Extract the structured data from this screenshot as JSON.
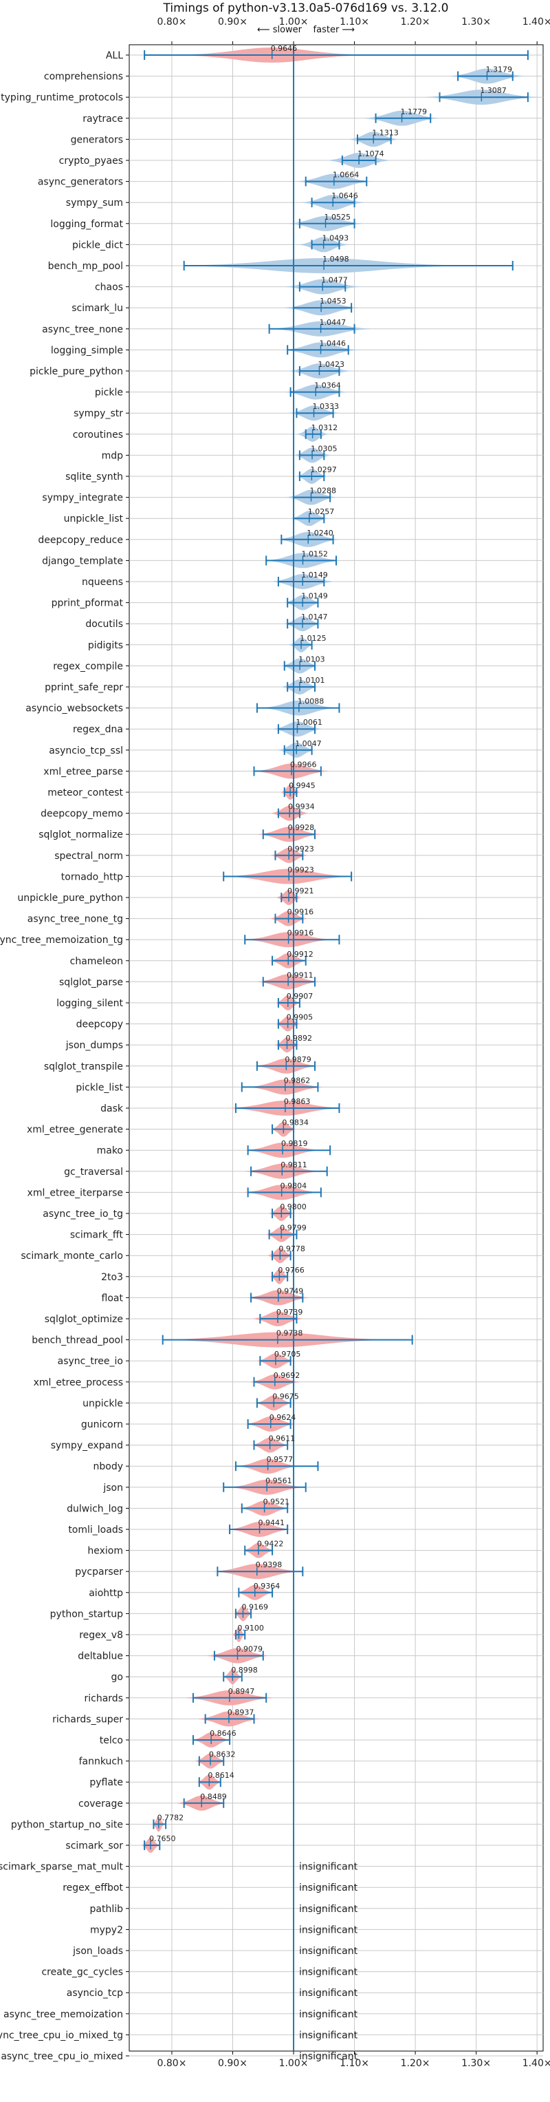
{
  "chart_data": {
    "type": "violin",
    "title": "Timings of python-v3.13.0a5-076d169 vs. 3.12.0",
    "subtitle": "⟵ slower    faster ⟶",
    "xlim": [
      0.73,
      1.41
    ],
    "xticks": [
      0.8,
      0.9,
      1.0,
      1.1,
      1.2,
      1.3,
      1.4
    ],
    "xtick_labels": [
      "0.80×",
      "0.90×",
      "1.00×",
      "1.10×",
      "1.20×",
      "1.30×",
      "1.40×"
    ],
    "reference_line": 1.0,
    "grid": true,
    "colors": {
      "faster": "#aecbe6",
      "slower": "#f3a5a5",
      "error_bar": "#1f77b4",
      "reference": "#1f77b4",
      "grid": "#c8c8c8"
    },
    "insignificant_label": "insignificant",
    "benchmarks": [
      {
        "name": "ALL",
        "value": 0.9646,
        "label": "0.9646",
        "low": 0.755,
        "high": 1.385,
        "spread": 0.3,
        "significant": true
      },
      {
        "name": "comprehensions",
        "value": 1.3179,
        "label": "1.3179",
        "low": 1.27,
        "high": 1.36,
        "spread": 0.12,
        "significant": true
      },
      {
        "name": "typing_runtime_protocols",
        "value": 1.3087,
        "label": "1.3087",
        "low": 1.24,
        "high": 1.385,
        "spread": 0.18,
        "significant": true
      },
      {
        "name": "raytrace",
        "value": 1.1779,
        "label": "1.1779",
        "low": 1.135,
        "high": 1.225,
        "spread": 0.12,
        "significant": true
      },
      {
        "name": "generators",
        "value": 1.1313,
        "label": "1.1313",
        "low": 1.105,
        "high": 1.16,
        "spread": 0.08,
        "significant": true
      },
      {
        "name": "crypto_pyaes",
        "value": 1.1074,
        "label": "1.1074",
        "low": 1.08,
        "high": 1.135,
        "spread": 0.1,
        "significant": true
      },
      {
        "name": "async_generators",
        "value": 1.0664,
        "label": "1.0664",
        "low": 1.02,
        "high": 1.12,
        "spread": 0.12,
        "significant": true
      },
      {
        "name": "sympy_sum",
        "value": 1.0646,
        "label": "1.0646",
        "low": 1.03,
        "high": 1.1,
        "spread": 0.1,
        "significant": true
      },
      {
        "name": "logging_format",
        "value": 1.0525,
        "label": "1.0525",
        "low": 1.01,
        "high": 1.1,
        "spread": 0.12,
        "significant": true
      },
      {
        "name": "pickle_dict",
        "value": 1.0493,
        "label": "1.0493",
        "low": 1.03,
        "high": 1.075,
        "spread": 0.08,
        "significant": true
      },
      {
        "name": "bench_mp_pool",
        "value": 1.0498,
        "label": "1.0498",
        "low": 0.82,
        "high": 1.36,
        "spread": 0.45,
        "significant": true
      },
      {
        "name": "chaos",
        "value": 1.0477,
        "label": "1.0477",
        "low": 1.01,
        "high": 1.085,
        "spread": 0.12,
        "significant": true
      },
      {
        "name": "scimark_lu",
        "value": 1.0453,
        "label": "1.0453",
        "low": 1.0,
        "high": 1.095,
        "spread": 0.12,
        "significant": true
      },
      {
        "name": "async_tree_none",
        "value": 1.0447,
        "label": "1.0447",
        "low": 0.96,
        "high": 1.1,
        "spread": 0.16,
        "significant": true
      },
      {
        "name": "logging_simple",
        "value": 1.0446,
        "label": "1.0446",
        "low": 0.99,
        "high": 1.09,
        "spread": 0.12,
        "significant": true
      },
      {
        "name": "pickle_pure_python",
        "value": 1.0423,
        "label": "1.0423",
        "low": 1.01,
        "high": 1.075,
        "spread": 0.1,
        "significant": true
      },
      {
        "name": "pickle",
        "value": 1.0364,
        "label": "1.0364",
        "low": 0.995,
        "high": 1.075,
        "spread": 0.1,
        "significant": true
      },
      {
        "name": "sympy_str",
        "value": 1.0333,
        "label": "1.0333",
        "low": 1.005,
        "high": 1.065,
        "spread": 0.08,
        "significant": true
      },
      {
        "name": "coroutines",
        "value": 1.0312,
        "label": "1.0312",
        "low": 1.02,
        "high": 1.045,
        "spread": 0.05,
        "significant": true
      },
      {
        "name": "mdp",
        "value": 1.0305,
        "label": "1.0305",
        "low": 1.01,
        "high": 1.05,
        "spread": 0.06,
        "significant": true
      },
      {
        "name": "sqlite_synth",
        "value": 1.0297,
        "label": "1.0297",
        "low": 1.01,
        "high": 1.05,
        "spread": 0.05,
        "significant": true
      },
      {
        "name": "sympy_integrate",
        "value": 1.0288,
        "label": "1.0288",
        "low": 1.0,
        "high": 1.06,
        "spread": 0.08,
        "significant": true
      },
      {
        "name": "unpickle_list",
        "value": 1.0257,
        "label": "1.0257",
        "low": 1.0,
        "high": 1.05,
        "spread": 0.06,
        "significant": true
      },
      {
        "name": "deepcopy_reduce",
        "value": 1.024,
        "label": "1.0240",
        "low": 0.98,
        "high": 1.065,
        "spread": 0.1,
        "significant": true
      },
      {
        "name": "django_template",
        "value": 1.0152,
        "label": "1.0152",
        "low": 0.955,
        "high": 1.07,
        "spread": 0.12,
        "significant": true
      },
      {
        "name": "nqueens",
        "value": 1.0149,
        "label": "1.0149",
        "low": 0.975,
        "high": 1.05,
        "spread": 0.1,
        "significant": true
      },
      {
        "name": "pprint_pformat",
        "value": 1.0149,
        "label": "1.0149",
        "low": 0.99,
        "high": 1.04,
        "spread": 0.06,
        "significant": true
      },
      {
        "name": "docutils",
        "value": 1.0147,
        "label": "1.0147",
        "low": 0.99,
        "high": 1.04,
        "spread": 0.06,
        "significant": true
      },
      {
        "name": "pidigits",
        "value": 1.0125,
        "label": "1.0125",
        "low": 1.0,
        "high": 1.03,
        "spread": 0.04,
        "significant": true
      },
      {
        "name": "regex_compile",
        "value": 1.0103,
        "label": "1.0103",
        "low": 0.985,
        "high": 1.035,
        "spread": 0.06,
        "significant": true
      },
      {
        "name": "pprint_safe_repr",
        "value": 1.0101,
        "label": "1.0101",
        "low": 0.99,
        "high": 1.035,
        "spread": 0.06,
        "significant": true
      },
      {
        "name": "asyncio_websockets",
        "value": 1.0088,
        "label": "1.0088",
        "low": 0.94,
        "high": 1.075,
        "spread": 0.12,
        "significant": true
      },
      {
        "name": "regex_dna",
        "value": 1.0061,
        "label": "1.0061",
        "low": 0.975,
        "high": 1.035,
        "spread": 0.08,
        "significant": true
      },
      {
        "name": "asyncio_tcp_ssl",
        "value": 1.0047,
        "label": "1.0047",
        "low": 0.985,
        "high": 1.03,
        "spread": 0.06,
        "significant": true
      },
      {
        "name": "xml_etree_parse",
        "value": 0.9966,
        "label": "0.9966",
        "low": 0.935,
        "high": 1.045,
        "spread": 0.12,
        "significant": true
      },
      {
        "name": "meteor_contest",
        "value": 0.9945,
        "label": "0.9945",
        "low": 0.985,
        "high": 1.005,
        "spread": 0.03,
        "significant": true
      },
      {
        "name": "deepcopy_memo",
        "value": 0.9934,
        "label": "0.9934",
        "low": 0.975,
        "high": 1.01,
        "spread": 0.06,
        "significant": true
      },
      {
        "name": "sqlglot_normalize",
        "value": 0.9928,
        "label": "0.9928",
        "low": 0.95,
        "high": 1.035,
        "spread": 0.1,
        "significant": true
      },
      {
        "name": "spectral_norm",
        "value": 0.9923,
        "label": "0.9923",
        "low": 0.97,
        "high": 1.015,
        "spread": 0.06,
        "significant": true
      },
      {
        "name": "tornado_http",
        "value": 0.9923,
        "label": "0.9923",
        "low": 0.885,
        "high": 1.095,
        "spread": 0.2,
        "significant": true
      },
      {
        "name": "unpickle_pure_python",
        "value": 0.9921,
        "label": "0.9921",
        "low": 0.98,
        "high": 1.005,
        "spread": 0.04,
        "significant": true
      },
      {
        "name": "async_tree_none_tg",
        "value": 0.9916,
        "label": "0.9916",
        "low": 0.97,
        "high": 1.015,
        "spread": 0.06,
        "significant": true
      },
      {
        "name": "async_tree_memoization_tg",
        "value": 0.9916,
        "label": "0.9916",
        "low": 0.92,
        "high": 1.075,
        "spread": 0.14,
        "significant": true
      },
      {
        "name": "chameleon",
        "value": 0.9912,
        "label": "0.9912",
        "low": 0.965,
        "high": 1.02,
        "spread": 0.06,
        "significant": true
      },
      {
        "name": "sqlglot_parse",
        "value": 0.9911,
        "label": "0.9911",
        "low": 0.95,
        "high": 1.035,
        "spread": 0.1,
        "significant": true
      },
      {
        "name": "logging_silent",
        "value": 0.9907,
        "label": "0.9907",
        "low": 0.975,
        "high": 1.01,
        "spread": 0.04,
        "significant": true
      },
      {
        "name": "deepcopy",
        "value": 0.9905,
        "label": "0.9905",
        "low": 0.975,
        "high": 1.005,
        "spread": 0.04,
        "significant": true
      },
      {
        "name": "json_dumps",
        "value": 0.9892,
        "label": "0.9892",
        "low": 0.975,
        "high": 1.005,
        "spread": 0.04,
        "significant": true
      },
      {
        "name": "sqlglot_transpile",
        "value": 0.9879,
        "label": "0.9879",
        "low": 0.94,
        "high": 1.035,
        "spread": 0.1,
        "significant": true
      },
      {
        "name": "pickle_list",
        "value": 0.9862,
        "label": "0.9862",
        "low": 0.915,
        "high": 1.04,
        "spread": 0.12,
        "significant": true
      },
      {
        "name": "dask",
        "value": 0.9863,
        "label": "0.9863",
        "low": 0.905,
        "high": 1.075,
        "spread": 0.18,
        "significant": true
      },
      {
        "name": "xml_etree_generate",
        "value": 0.9834,
        "label": "0.9834",
        "low": 0.965,
        "high": 1.0,
        "spread": 0.04,
        "significant": true
      },
      {
        "name": "mako",
        "value": 0.9819,
        "label": "0.9819",
        "low": 0.925,
        "high": 1.06,
        "spread": 0.12,
        "significant": true
      },
      {
        "name": "gc_traversal",
        "value": 0.9811,
        "label": "0.9811",
        "low": 0.93,
        "high": 1.055,
        "spread": 0.12,
        "significant": true
      },
      {
        "name": "xml_etree_iterparse",
        "value": 0.9804,
        "label": "0.9804",
        "low": 0.925,
        "high": 1.045,
        "spread": 0.12,
        "significant": true
      },
      {
        "name": "async_tree_io_tg",
        "value": 0.98,
        "label": "0.9800",
        "low": 0.965,
        "high": 0.995,
        "spread": 0.04,
        "significant": true
      },
      {
        "name": "scimark_fft",
        "value": 0.9799,
        "label": "0.9799",
        "low": 0.96,
        "high": 1.005,
        "spread": 0.05,
        "significant": true
      },
      {
        "name": "scimark_monte_carlo",
        "value": 0.9778,
        "label": "0.9778",
        "low": 0.965,
        "high": 0.995,
        "spread": 0.04,
        "significant": true
      },
      {
        "name": "2to3",
        "value": 0.9766,
        "label": "0.9766",
        "low": 0.965,
        "high": 0.99,
        "spread": 0.03,
        "significant": true
      },
      {
        "name": "float",
        "value": 0.9749,
        "label": "0.9749",
        "low": 0.93,
        "high": 1.015,
        "spread": 0.1,
        "significant": true
      },
      {
        "name": "sqlglot_optimize",
        "value": 0.9739,
        "label": "0.9739",
        "low": 0.945,
        "high": 1.005,
        "spread": 0.08,
        "significant": true
      },
      {
        "name": "bench_thread_pool",
        "value": 0.9738,
        "label": "0.9738",
        "low": 0.785,
        "high": 1.195,
        "spread": 0.36,
        "significant": true
      },
      {
        "name": "async_tree_io",
        "value": 0.9705,
        "label": "0.9705",
        "low": 0.945,
        "high": 0.995,
        "spread": 0.06,
        "significant": true
      },
      {
        "name": "xml_etree_process",
        "value": 0.9692,
        "label": "0.9692",
        "low": 0.935,
        "high": 1.0,
        "spread": 0.08,
        "significant": true
      },
      {
        "name": "unpickle",
        "value": 0.9675,
        "label": "0.9675",
        "low": 0.94,
        "high": 0.995,
        "spread": 0.06,
        "significant": true
      },
      {
        "name": "gunicorn",
        "value": 0.9624,
        "label": "0.9624",
        "low": 0.925,
        "high": 0.995,
        "spread": 0.08,
        "significant": true
      },
      {
        "name": "sympy_expand",
        "value": 0.9611,
        "label": "0.9611",
        "low": 0.935,
        "high": 0.99,
        "spread": 0.06,
        "significant": true
      },
      {
        "name": "nbody",
        "value": 0.9577,
        "label": "0.9577",
        "low": 0.905,
        "high": 1.04,
        "spread": 0.1,
        "significant": true
      },
      {
        "name": "json",
        "value": 0.9561,
        "label": "0.9561",
        "low": 0.885,
        "high": 1.02,
        "spread": 0.12,
        "significant": true
      },
      {
        "name": "dulwich_log",
        "value": 0.9521,
        "label": "0.9521",
        "low": 0.915,
        "high": 0.99,
        "spread": 0.08,
        "significant": true
      },
      {
        "name": "tomli_loads",
        "value": 0.9441,
        "label": "0.9441",
        "low": 0.895,
        "high": 0.99,
        "spread": 0.1,
        "significant": true
      },
      {
        "name": "hexiom",
        "value": 0.9422,
        "label": "0.9422",
        "low": 0.92,
        "high": 0.965,
        "spread": 0.05,
        "significant": true
      },
      {
        "name": "pycparser",
        "value": 0.9398,
        "label": "0.9398",
        "low": 0.875,
        "high": 1.015,
        "spread": 0.14,
        "significant": true
      },
      {
        "name": "aiohttp",
        "value": 0.9364,
        "label": "0.9364",
        "low": 0.91,
        "high": 0.965,
        "spread": 0.06,
        "significant": true
      },
      {
        "name": "python_startup",
        "value": 0.9169,
        "label": "0.9169",
        "low": 0.905,
        "high": 0.93,
        "spread": 0.03,
        "significant": true
      },
      {
        "name": "regex_v8",
        "value": 0.91,
        "label": "0.9100",
        "low": 0.905,
        "high": 0.92,
        "spread": 0.02,
        "significant": true
      },
      {
        "name": "deltablue",
        "value": 0.9079,
        "label": "0.9079",
        "low": 0.87,
        "high": 0.95,
        "spread": 0.1,
        "significant": true
      },
      {
        "name": "go",
        "value": 0.8998,
        "label": "0.8998",
        "low": 0.885,
        "high": 0.915,
        "spread": 0.03,
        "significant": true
      },
      {
        "name": "richards",
        "value": 0.8947,
        "label": "0.8947",
        "low": 0.835,
        "high": 0.955,
        "spread": 0.14,
        "significant": true
      },
      {
        "name": "richards_super",
        "value": 0.8937,
        "label": "0.8937",
        "low": 0.855,
        "high": 0.935,
        "spread": 0.1,
        "significant": true
      },
      {
        "name": "telco",
        "value": 0.8646,
        "label": "0.8646",
        "low": 0.835,
        "high": 0.895,
        "spread": 0.06,
        "significant": true
      },
      {
        "name": "fannkuch",
        "value": 0.8632,
        "label": "0.8632",
        "low": 0.845,
        "high": 0.885,
        "spread": 0.05,
        "significant": true
      },
      {
        "name": "pyflate",
        "value": 0.8614,
        "label": "0.8614",
        "low": 0.845,
        "high": 0.88,
        "spread": 0.04,
        "significant": true
      },
      {
        "name": "coverage",
        "value": 0.8489,
        "label": "0.8489",
        "low": 0.82,
        "high": 0.885,
        "spread": 0.08,
        "significant": true
      },
      {
        "name": "python_startup_no_site",
        "value": 0.7782,
        "label": "0.7782",
        "low": 0.77,
        "high": 0.79,
        "spread": 0.02,
        "significant": true
      },
      {
        "name": "scimark_sor",
        "value": 0.765,
        "label": "0.7650",
        "low": 0.755,
        "high": 0.78,
        "spread": 0.03,
        "significant": true
      },
      {
        "name": "scimark_sparse_mat_mult",
        "significant": false
      },
      {
        "name": "regex_effbot",
        "significant": false
      },
      {
        "name": "pathlib",
        "significant": false
      },
      {
        "name": "mypy2",
        "significant": false
      },
      {
        "name": "json_loads",
        "significant": false
      },
      {
        "name": "create_gc_cycles",
        "significant": false
      },
      {
        "name": "asyncio_tcp",
        "significant": false
      },
      {
        "name": "async_tree_memoization",
        "significant": false
      },
      {
        "name": "async_tree_cpu_io_mixed_tg",
        "significant": false
      },
      {
        "name": "async_tree_cpu_io_mixed",
        "significant": false
      }
    ]
  }
}
